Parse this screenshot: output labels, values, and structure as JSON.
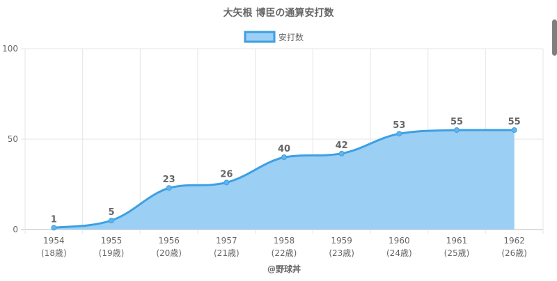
{
  "chart_data": {
    "type": "area",
    "title": "大矢根 博臣の通算安打数",
    "legend": {
      "label": "安打数",
      "position": "top"
    },
    "x": [
      "1954",
      "1955",
      "1956",
      "1957",
      "1958",
      "1959",
      "1960",
      "1961",
      "1962"
    ],
    "x_sub": [
      "(18歳)",
      "(19歳)",
      "(20歳)",
      "(21歳)",
      "(22歳)",
      "(23歳)",
      "(24歳)",
      "(25歳)",
      "(26歳)"
    ],
    "series": [
      {
        "name": "安打数",
        "values": [
          1,
          5,
          23,
          26,
          40,
          42,
          53,
          55,
          55
        ]
      }
    ],
    "ylim": [
      0,
      100
    ],
    "yticks": [
      0,
      50,
      100
    ],
    "grid": true,
    "colors": {
      "line": "#3e9fe3",
      "fill": "#9bcff4",
      "text": "#666666",
      "grid": "#e5e5e5"
    }
  },
  "credit": "@野球丼"
}
